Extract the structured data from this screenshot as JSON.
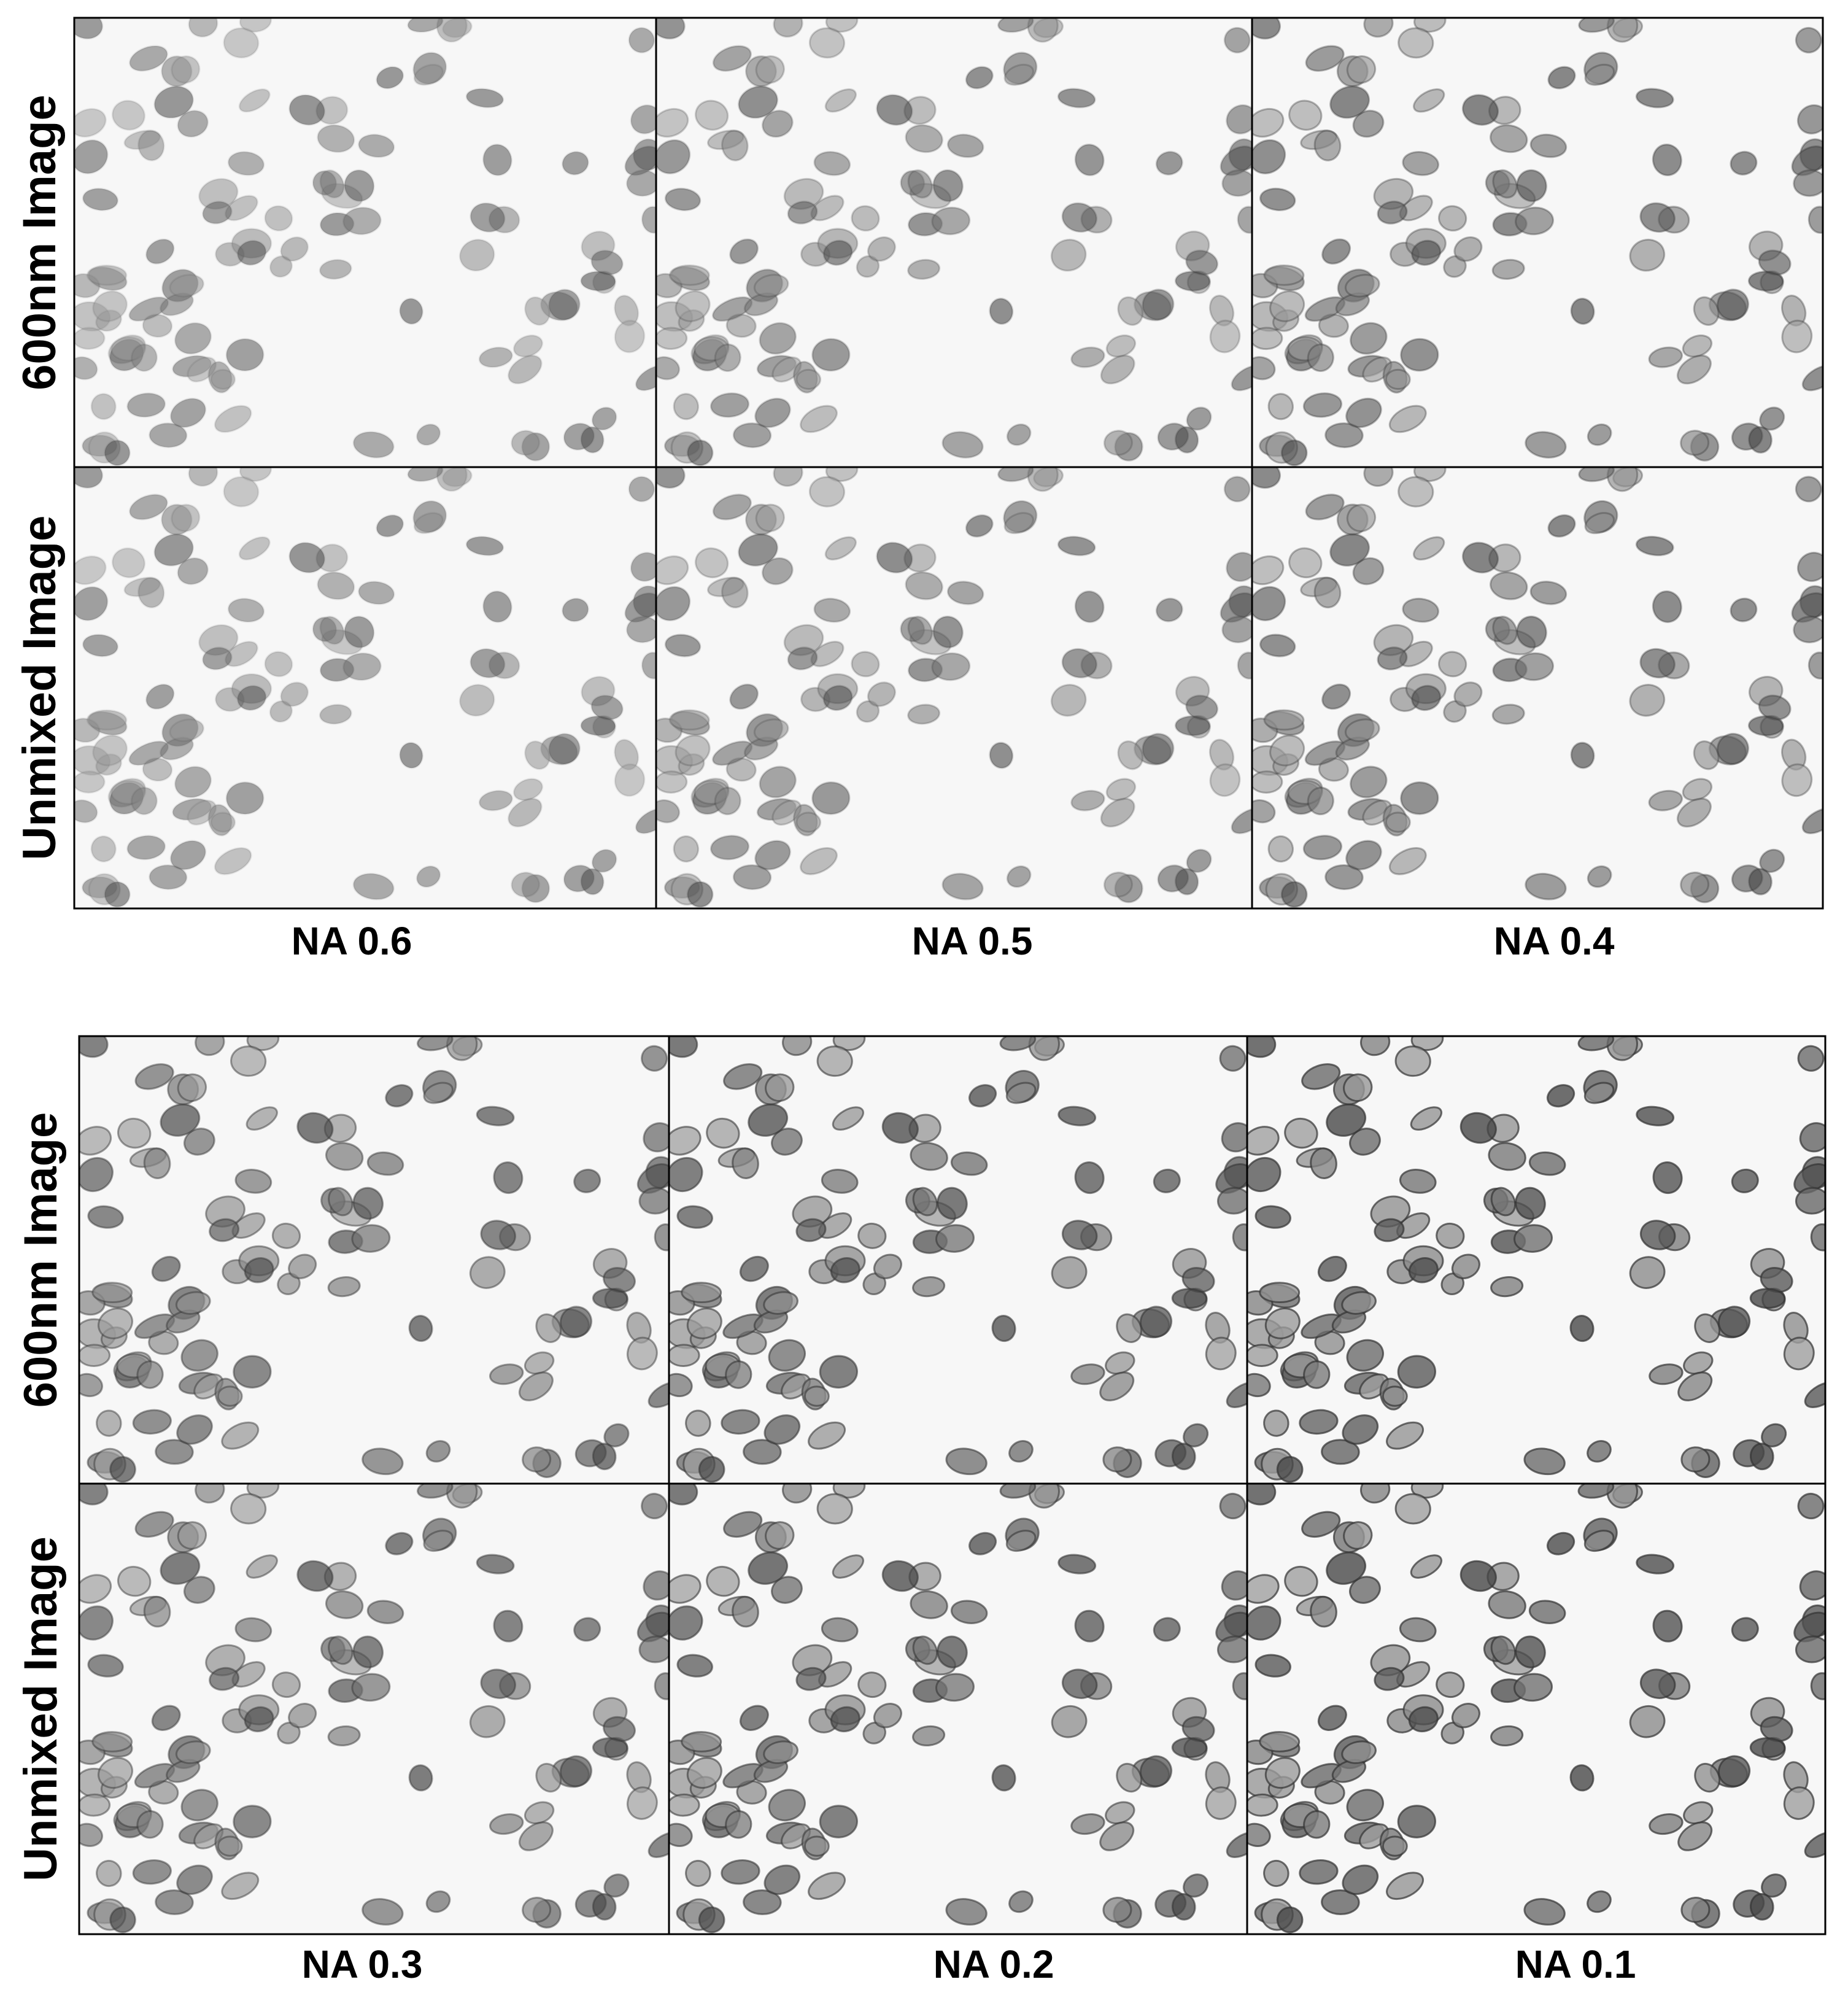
{
  "panels": [
    {
      "row_labels": [
        "600nm Image",
        "Unmixed Image"
      ],
      "column_labels": [
        "NA 0.6",
        "NA 0.5",
        "NA 0.4"
      ]
    },
    {
      "row_labels": [
        "600nm Image",
        "Unmixed Image"
      ],
      "column_labels": [
        "NA 0.3",
        "NA 0.2",
        "NA 0.1"
      ]
    }
  ]
}
